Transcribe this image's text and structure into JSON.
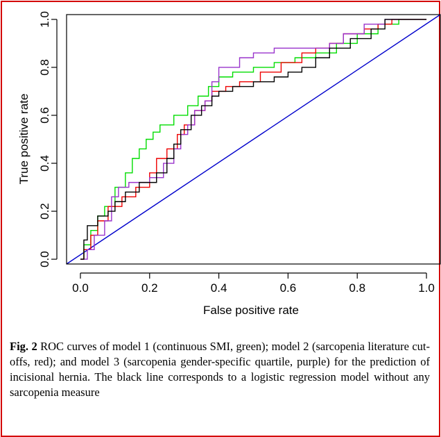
{
  "chart_data": {
    "type": "line",
    "xlabel": "False positive rate",
    "ylabel": "True positive rate",
    "xlim": [
      -0.04,
      1.04
    ],
    "ylim": [
      -0.02,
      1.02
    ],
    "xticks": [
      "0.0",
      "0.2",
      "0.4",
      "0.6",
      "0.8",
      "1.0"
    ],
    "yticks": [
      "0.0",
      "0.2",
      "0.4",
      "0.6",
      "0.8",
      "1.0"
    ],
    "grid": false,
    "legend": "none",
    "series": [
      {
        "color": "#0000cc",
        "x": [
          -0.04,
          1.04
        ],
        "y": [
          -0.02,
          1.02
        ]
      },
      {
        "color": "#00dd00",
        "x": [
          0,
          0.01,
          0.01,
          0.03,
          0.03,
          0.05,
          0.05,
          0.07,
          0.07,
          0.1,
          0.1,
          0.13,
          0.13,
          0.15,
          0.15,
          0.17,
          0.17,
          0.19,
          0.19,
          0.21,
          0.21,
          0.23,
          0.23,
          0.27,
          0.27,
          0.31,
          0.31,
          0.34,
          0.34,
          0.37,
          0.37,
          0.4,
          0.4,
          0.44,
          0.44,
          0.5,
          0.5,
          0.56,
          0.56,
          0.62,
          0.62,
          0.68,
          0.68,
          0.74,
          0.74,
          0.8,
          0.8,
          0.86,
          0.86,
          0.92,
          0.92,
          1.0
        ],
        "y": [
          0,
          0,
          0.06,
          0.06,
          0.12,
          0.12,
          0.18,
          0.18,
          0.22,
          0.22,
          0.3,
          0.3,
          0.36,
          0.36,
          0.42,
          0.42,
          0.46,
          0.46,
          0.5,
          0.5,
          0.53,
          0.53,
          0.56,
          0.56,
          0.6,
          0.6,
          0.64,
          0.64,
          0.68,
          0.68,
          0.72,
          0.72,
          0.76,
          0.76,
          0.78,
          0.78,
          0.8,
          0.8,
          0.82,
          0.82,
          0.84,
          0.84,
          0.86,
          0.86,
          0.9,
          0.9,
          0.94,
          0.94,
          0.98,
          0.98,
          1.0,
          1.0
        ]
      },
      {
        "color": "#ee0000",
        "x": [
          0,
          0.01,
          0.01,
          0.03,
          0.03,
          0.05,
          0.05,
          0.08,
          0.08,
          0.12,
          0.12,
          0.16,
          0.16,
          0.2,
          0.2,
          0.22,
          0.22,
          0.25,
          0.25,
          0.28,
          0.28,
          0.3,
          0.3,
          0.33,
          0.33,
          0.36,
          0.36,
          0.38,
          0.38,
          0.42,
          0.42,
          0.46,
          0.46,
          0.52,
          0.52,
          0.58,
          0.58,
          0.64,
          0.64,
          0.68,
          0.68,
          0.72,
          0.72,
          0.76,
          0.76,
          0.82,
          0.82,
          0.86,
          0.86,
          0.9,
          0.9,
          1.0
        ],
        "y": [
          0,
          0,
          0.04,
          0.04,
          0.1,
          0.1,
          0.16,
          0.16,
          0.22,
          0.22,
          0.26,
          0.26,
          0.3,
          0.3,
          0.36,
          0.36,
          0.42,
          0.42,
          0.46,
          0.46,
          0.52,
          0.52,
          0.56,
          0.56,
          0.62,
          0.62,
          0.66,
          0.66,
          0.7,
          0.7,
          0.72,
          0.72,
          0.74,
          0.74,
          0.78,
          0.78,
          0.82,
          0.82,
          0.86,
          0.86,
          0.88,
          0.88,
          0.9,
          0.9,
          0.94,
          0.94,
          0.96,
          0.96,
          0.98,
          0.98,
          1.0,
          1.0
        ]
      },
      {
        "color": "#9933cc",
        "x": [
          0,
          0.02,
          0.02,
          0.04,
          0.04,
          0.07,
          0.07,
          0.09,
          0.09,
          0.11,
          0.11,
          0.14,
          0.14,
          0.2,
          0.2,
          0.24,
          0.24,
          0.27,
          0.27,
          0.29,
          0.29,
          0.31,
          0.31,
          0.33,
          0.33,
          0.36,
          0.36,
          0.38,
          0.38,
          0.4,
          0.4,
          0.46,
          0.46,
          0.5,
          0.5,
          0.56,
          0.56,
          0.72,
          0.72,
          0.76,
          0.76,
          0.82,
          0.82,
          0.88,
          0.88,
          0.92,
          0.92,
          1.0
        ],
        "y": [
          0,
          0,
          0.04,
          0.04,
          0.1,
          0.1,
          0.16,
          0.16,
          0.26,
          0.26,
          0.3,
          0.3,
          0.32,
          0.32,
          0.34,
          0.34,
          0.4,
          0.4,
          0.46,
          0.46,
          0.52,
          0.52,
          0.56,
          0.56,
          0.62,
          0.62,
          0.66,
          0.66,
          0.74,
          0.74,
          0.8,
          0.8,
          0.84,
          0.84,
          0.86,
          0.86,
          0.88,
          0.88,
          0.9,
          0.9,
          0.94,
          0.94,
          0.98,
          0.98,
          1.0,
          1.0,
          1.0,
          1.0
        ]
      },
      {
        "color": "#000000",
        "x": [
          0,
          0.01,
          0.01,
          0.02,
          0.02,
          0.05,
          0.05,
          0.08,
          0.08,
          0.1,
          0.1,
          0.13,
          0.13,
          0.17,
          0.17,
          0.22,
          0.22,
          0.25,
          0.25,
          0.27,
          0.27,
          0.29,
          0.29,
          0.32,
          0.32,
          0.35,
          0.35,
          0.38,
          0.38,
          0.4,
          0.4,
          0.44,
          0.44,
          0.5,
          0.5,
          0.56,
          0.56,
          0.6,
          0.6,
          0.64,
          0.64,
          0.68,
          0.68,
          0.72,
          0.72,
          0.78,
          0.78,
          0.84,
          0.84,
          0.88,
          0.88,
          1.0
        ],
        "y": [
          0,
          0,
          0.08,
          0.08,
          0.14,
          0.14,
          0.18,
          0.18,
          0.2,
          0.2,
          0.24,
          0.24,
          0.28,
          0.28,
          0.32,
          0.32,
          0.36,
          0.36,
          0.42,
          0.42,
          0.48,
          0.48,
          0.54,
          0.54,
          0.6,
          0.6,
          0.64,
          0.64,
          0.68,
          0.68,
          0.7,
          0.7,
          0.72,
          0.72,
          0.74,
          0.74,
          0.76,
          0.76,
          0.78,
          0.78,
          0.8,
          0.8,
          0.84,
          0.84,
          0.88,
          0.88,
          0.92,
          0.92,
          0.96,
          0.96,
          1.0,
          1.0
        ]
      }
    ]
  },
  "caption": {
    "label": "Fig. 2",
    "text": "ROC curves of model 1 (continuous SMI, green); model 2 (sarcopenia literature cut-offs, red); and model 3 (sarcopenia gender-specific quartile, purple) for the prediction of incisional hernia. The black line corresponds to a logistic regression model without any sarcopenia measure"
  },
  "colors": {
    "frame_border": "#d40000"
  }
}
